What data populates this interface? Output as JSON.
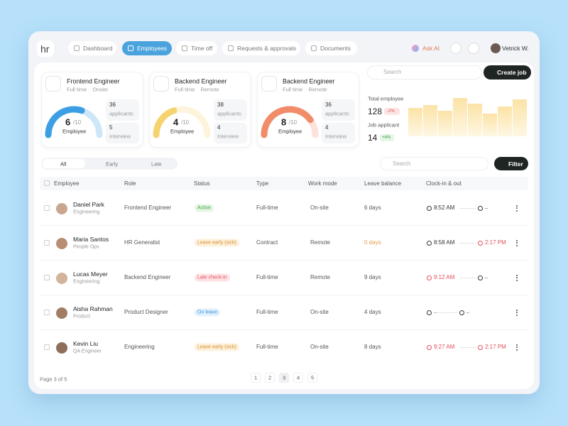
{
  "brand": {
    "logo": "hr"
  },
  "nav": {
    "items": [
      "Dashboard",
      "Employees",
      "Time off",
      "Requests & approvals",
      "Documents"
    ],
    "active": 1,
    "ask_ai": "Ask AI",
    "user": "Vetrick W."
  },
  "jobs": [
    {
      "title": "Frontend Engineer",
      "schedule": "Full time",
      "location": "Onsite",
      "filled": 6,
      "capacity": "/10",
      "filled_label": "Employee",
      "applicants": "36",
      "applicants_label": "applicants",
      "interviews": "5",
      "interviews_label": "Interview",
      "color": "#3d9fe3"
    },
    {
      "title": "Backend Engineer",
      "schedule": "Full time",
      "location": "Remote",
      "filled": 4,
      "capacity": "/10",
      "filled_label": "Employee",
      "applicants": "38",
      "applicants_label": "applicants",
      "interviews": "4",
      "interviews_label": "Interview",
      "color": "#f6d36e"
    },
    {
      "title": "Backend Engineer",
      "schedule": "Full time",
      "location": "Remote",
      "filled": 8,
      "capacity": "/10",
      "filled_label": "Employee",
      "applicants": "36",
      "applicants_label": "applicants",
      "interviews": "4",
      "interviews_label": "Interview",
      "color": "#f28b68"
    }
  ],
  "search": {
    "placeholder": "Search"
  },
  "create_job": "Create job",
  "summary": {
    "total_label": "Total employee",
    "total": "128",
    "total_change": "-2%",
    "applicant_label": "Job applicant",
    "applicants": "14",
    "applicant_change": "+4%"
  },
  "filters": {
    "tabs": [
      "All",
      "Early",
      "Late"
    ],
    "active": 0,
    "search": "Search",
    "button": "Filter"
  },
  "table": {
    "columns": [
      "Employee",
      "Role",
      "Status",
      "Type",
      "Work mode",
      "Leave balance",
      "Clock-in & out"
    ],
    "rows": [
      {
        "name": "Daniel Park",
        "team": "Engineering",
        "role": "Frontend Engineer",
        "status": "Active",
        "status_tone": "green",
        "type": "Full-time",
        "work_mode": "On-site",
        "leave": "6 days",
        "leave_warning": false,
        "clock_in": "8:52 AM",
        "clock_in_late": false,
        "clock_out": null,
        "clock_out_late": false
      },
      {
        "name": "Maria Santos",
        "team": "People Ops",
        "role": "HR Generalist",
        "status": "Leave early (sick)",
        "status_tone": "orange",
        "type": "Contract",
        "work_mode": "Remote",
        "leave": "0 days",
        "leave_warning": true,
        "clock_in": "8:58 AM",
        "clock_in_late": false,
        "clock_out": "2:17 PM",
        "clock_out_late": true
      },
      {
        "name": "Lucas Meyer",
        "team": "Engineering",
        "role": "Backend Engineer",
        "status": "Late check-in",
        "status_tone": "red",
        "type": "Full-time",
        "work_mode": "Remote",
        "leave": "9 days",
        "leave_warning": false,
        "clock_in": "9:12 AM",
        "clock_in_late": true,
        "clock_out": null,
        "clock_out_late": false
      },
      {
        "name": "Aisha Rahman",
        "team": "Product",
        "role": "Product Designer",
        "status": "On leave",
        "status_tone": "blue",
        "type": "Full-time",
        "work_mode": "On-site",
        "leave": "4 days",
        "leave_warning": false,
        "clock_in": null,
        "clock_in_late": false,
        "clock_out": null,
        "clock_out_late": false
      },
      {
        "name": "Kevin Liu",
        "team": "QA Engineer",
        "role": "Engineering",
        "status": "Leave early (sick)",
        "status_tone": "orange",
        "type": "Full-time",
        "work_mode": "On-site",
        "leave": "8 days",
        "leave_warning": false,
        "clock_in": "9:27 AM",
        "clock_in_late": true,
        "clock_out": "2:17 PM",
        "clock_out_late": true
      }
    ]
  },
  "pagination": {
    "label": "Page 3 of 5",
    "pages": [
      "1",
      "2",
      "3",
      "4",
      "5"
    ],
    "current": 2
  }
}
